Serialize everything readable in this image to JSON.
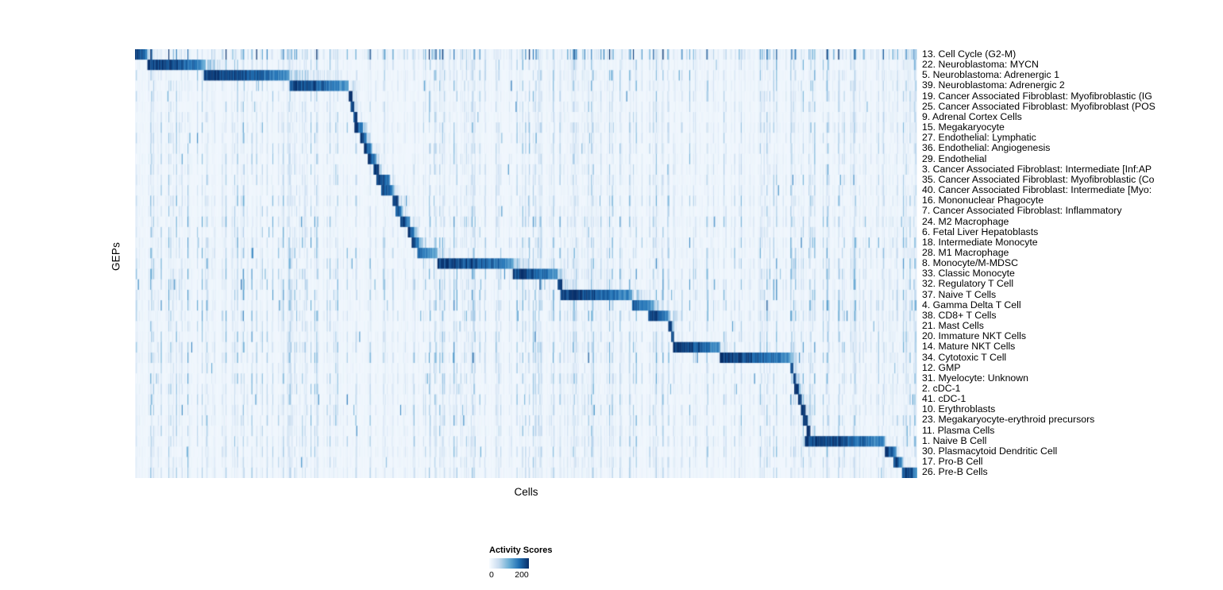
{
  "figure": {
    "x_label": "Cells",
    "y_label": "GEPs",
    "legend": {
      "title": "Activity Scores",
      "min_label": "0",
      "max_label": "200"
    }
  },
  "chart_data": {
    "type": "heatmap",
    "title": "",
    "xlabel": "Cells",
    "ylabel": "GEPs",
    "legend_title": "Activity Scores",
    "value_range": [
      0,
      200
    ],
    "colormap": "Blues",
    "colormap_stops": [
      [
        0,
        "#f7fbff"
      ],
      [
        0.25,
        "#c6dbef"
      ],
      [
        0.5,
        "#6baed6"
      ],
      [
        0.75,
        "#2171b5"
      ],
      [
        1,
        "#08306b"
      ]
    ],
    "n_rows": 41,
    "rows_note": "Each row is a GEP; cells (columns) are ordered so each program's high-activity block forms a diagonal staircase. 'block' = [startFraction, endFraction] of the x-axis where activity is high.",
    "rows": [
      {
        "label": "13. Cell Cycle (G2-M)",
        "block": [
          0.0,
          0.016
        ],
        "peak": 1.0,
        "noise": 3.2,
        "tail": 0.0
      },
      {
        "label": "22. Neuroblastoma: MYCN",
        "block": [
          0.016,
          0.088
        ],
        "peak": 1.0,
        "noise": 1.2,
        "tail": 0.04
      },
      {
        "label": "5. Neuroblastoma: Adrenergic 1",
        "block": [
          0.088,
          0.198
        ],
        "peak": 1.0,
        "noise": 1.2,
        "tail": 0.09
      },
      {
        "label": "39. Neuroblastoma: Adrenergic 2",
        "block": [
          0.198,
          0.273
        ],
        "peak": 0.95,
        "noise": 1.2,
        "tail": 0.02
      },
      {
        "label": "19. Cancer Associated Fibroblast: Myofibroblastic (IG",
        "block": [
          0.273,
          0.278
        ],
        "peak": 1.0,
        "noise": 1.0,
        "tail": 0.01
      },
      {
        "label": "25. Cancer Associated Fibroblast: Myofibroblast (POS",
        "block": [
          0.276,
          0.281
        ],
        "peak": 0.9,
        "noise": 1.0,
        "tail": 0.01
      },
      {
        "label": "9. Adrenal Cortex Cells",
        "block": [
          0.279,
          0.284
        ],
        "peak": 0.9,
        "noise": 1.0,
        "tail": 0.01
      },
      {
        "label": "15. Megakaryocyte",
        "block": [
          0.281,
          0.291
        ],
        "peak": 1.0,
        "noise": 1.3,
        "tail": 0.01
      },
      {
        "label": "27. Endothelial: Lymphatic",
        "block": [
          0.288,
          0.296
        ],
        "peak": 1.0,
        "noise": 1.0,
        "tail": 0.01
      },
      {
        "label": "36. Endothelial: Angiogenesis",
        "block": [
          0.293,
          0.302
        ],
        "peak": 1.0,
        "noise": 1.0,
        "tail": 0.015
      },
      {
        "label": "29. Endothelial",
        "block": [
          0.298,
          0.308
        ],
        "peak": 1.0,
        "noise": 1.0,
        "tail": 0.015
      },
      {
        "label": "3. Cancer Associated Fibroblast: Intermediate [Inf:AP",
        "block": [
          0.305,
          0.312
        ],
        "peak": 0.95,
        "noise": 1.0,
        "tail": 0.01
      },
      {
        "label": "35. Cancer Associated Fibroblast: Myofibroblastic (Co",
        "block": [
          0.309,
          0.326
        ],
        "peak": 1.0,
        "noise": 1.0,
        "tail": 0.01
      },
      {
        "label": "40. Cancer Associated Fibroblast: Intermediate [Myo:",
        "block": [
          0.315,
          0.331
        ],
        "peak": 0.95,
        "noise": 1.0,
        "tail": 0.01
      },
      {
        "label": "16. Mononuclear Phagocyte",
        "block": [
          0.329,
          0.336
        ],
        "peak": 0.95,
        "noise": 1.4,
        "tail": 0.02
      },
      {
        "label": "7. Cancer Associated Fibroblast: Inflammatory",
        "block": [
          0.333,
          0.341
        ],
        "peak": 0.95,
        "noise": 1.0,
        "tail": 0.01
      },
      {
        "label": "24. M2 Macrophage",
        "block": [
          0.339,
          0.351
        ],
        "peak": 1.0,
        "noise": 1.5,
        "tail": 0.02
      },
      {
        "label": "6. Fetal Liver Hepatoblasts",
        "block": [
          0.349,
          0.357
        ],
        "peak": 1.0,
        "noise": 1.0,
        "tail": 0.01
      },
      {
        "label": "18. Intermediate Monocyte",
        "block": [
          0.354,
          0.364
        ],
        "peak": 0.95,
        "noise": 1.5,
        "tail": 0.02
      },
      {
        "label": "28. M1 Macrophage",
        "block": [
          0.361,
          0.386
        ],
        "peak": 0.8,
        "noise": 1.5,
        "tail": 0.02
      },
      {
        "label": "8. Monocyte/M-MDSC",
        "block": [
          0.386,
          0.483
        ],
        "peak": 1.0,
        "noise": 1.5,
        "tail": 0.03
      },
      {
        "label": "33. Classic Monocyte",
        "block": [
          0.483,
          0.54
        ],
        "peak": 1.0,
        "noise": 1.5,
        "tail": 0.02
      },
      {
        "label": "32. Regulatory T Cell",
        "block": [
          0.54,
          0.546
        ],
        "peak": 0.9,
        "noise": 1.6,
        "tail": 0.02
      },
      {
        "label": "37. Naive T Cells",
        "block": [
          0.544,
          0.635
        ],
        "peak": 1.0,
        "noise": 1.6,
        "tail": 0.03
      },
      {
        "label": "4. Gamma Delta T Cell",
        "block": [
          0.635,
          0.664
        ],
        "peak": 0.85,
        "noise": 1.6,
        "tail": 0.02
      },
      {
        "label": "38. CD8+ T Cells",
        "block": [
          0.656,
          0.682
        ],
        "peak": 1.0,
        "noise": 1.6,
        "tail": 0.02
      },
      {
        "label": "21. Mast Cells",
        "block": [
          0.682,
          0.686
        ],
        "peak": 0.9,
        "noise": 1.0,
        "tail": 0.01
      },
      {
        "label": "20. Immature NKT Cells",
        "block": [
          0.685,
          0.689
        ],
        "peak": 0.9,
        "noise": 1.3,
        "tail": 0.01
      },
      {
        "label": "14. Mature NKT Cells",
        "block": [
          0.688,
          0.747
        ],
        "peak": 1.0,
        "noise": 1.5,
        "tail": 0.02
      },
      {
        "label": "34. Cytotoxic T Cell",
        "block": [
          0.747,
          0.838
        ],
        "peak": 1.0,
        "noise": 1.5,
        "tail": 0.02
      },
      {
        "label": "12. GMP",
        "block": [
          0.838,
          0.842
        ],
        "peak": 0.9,
        "noise": 1.0,
        "tail": 0.01
      },
      {
        "label": "31. Myelocyte: Unknown",
        "block": [
          0.841,
          0.845
        ],
        "peak": 0.9,
        "noise": 1.4,
        "tail": 0.01
      },
      {
        "label": "2. cDC-1",
        "block": [
          0.843,
          0.849
        ],
        "peak": 0.95,
        "noise": 1.2,
        "tail": 0.01
      },
      {
        "label": "41. cDC-1",
        "block": [
          0.847,
          0.853
        ],
        "peak": 0.9,
        "noise": 1.2,
        "tail": 0.01
      },
      {
        "label": "10. Erythroblasts",
        "block": [
          0.851,
          0.857
        ],
        "peak": 1.0,
        "noise": 1.2,
        "tail": 0.01
      },
      {
        "label": "23. Megakaryocyte-erythroid precursors",
        "block": [
          0.854,
          0.86
        ],
        "peak": 0.95,
        "noise": 1.3,
        "tail": 0.01
      },
      {
        "label": "11. Plasma Cells",
        "block": [
          0.858,
          0.863
        ],
        "peak": 1.0,
        "noise": 1.0,
        "tail": 0.01
      },
      {
        "label": "1. Naive B Cell",
        "block": [
          0.856,
          0.959
        ],
        "peak": 1.0,
        "noise": 1.2,
        "tail": 0.005
      },
      {
        "label": "30. Plasmacytoid Dendritic Cell",
        "block": [
          0.959,
          0.973
        ],
        "peak": 1.0,
        "noise": 1.1,
        "tail": 0.005
      },
      {
        "label": "17. Pro-B Cell",
        "block": [
          0.969,
          0.981
        ],
        "peak": 1.0,
        "noise": 1.0,
        "tail": 0.005
      },
      {
        "label": "26. Pre-B Cells",
        "block": [
          0.981,
          1.0
        ],
        "peak": 1.0,
        "noise": 1.0,
        "tail": 0.0
      }
    ]
  }
}
